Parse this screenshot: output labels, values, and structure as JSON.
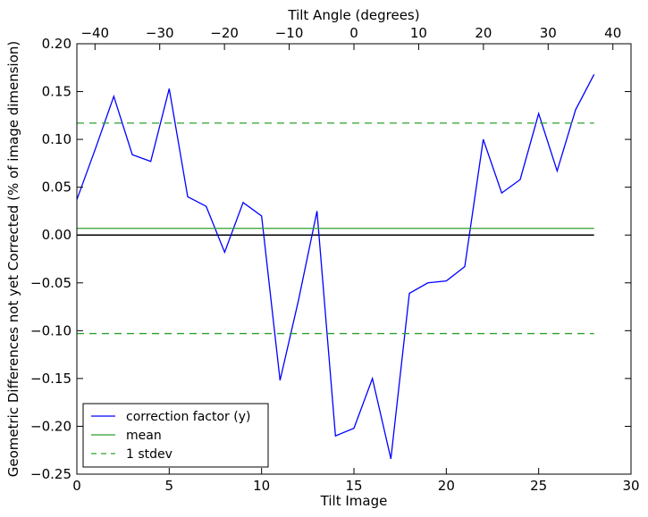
{
  "chart_data": {
    "type": "line",
    "xlabel": "Tilt Image",
    "ylabel": "Geometric Differences not yet Corrected (% of image dimension)",
    "top_xlabel": "Tilt Angle (degrees)",
    "xlim": [
      0,
      30
    ],
    "ylim": [
      -0.25,
      0.2
    ],
    "top_xlim": [
      -42.8,
      42.8
    ],
    "x_ticks": [
      0,
      5,
      10,
      15,
      20,
      25,
      30
    ],
    "x_tick_labels": [
      "0",
      "5",
      "10",
      "15",
      "20",
      "25",
      "30"
    ],
    "y_ticks": [
      -0.25,
      -0.2,
      -0.15,
      -0.1,
      -0.05,
      0.0,
      0.05,
      0.1,
      0.15,
      0.2
    ],
    "y_tick_labels": [
      "−0.25",
      "−0.20",
      "−0.15",
      "−0.10",
      "−0.05",
      "0.00",
      "0.05",
      "0.10",
      "0.15",
      "0.20"
    ],
    "top_ticks": [
      -40,
      -30,
      -20,
      -10,
      0,
      10,
      20,
      30,
      40
    ],
    "top_tick_labels": [
      "−40",
      "−30",
      "−20",
      "−10",
      "0",
      "10",
      "20",
      "30",
      "40"
    ],
    "grid": false,
    "legend_placement": "lower-left",
    "zero_line": {
      "y": 0.0,
      "x_range": [
        0,
        28
      ],
      "color": "#000000"
    },
    "series": [
      {
        "name": "correction factor (y)",
        "style": "solid",
        "color": "#0000ff",
        "x": [
          0,
          1,
          2,
          3,
          4,
          5,
          6,
          7,
          8,
          9,
          10,
          11,
          12,
          13,
          14,
          15,
          16,
          17,
          18,
          19,
          20,
          21,
          22,
          23,
          24,
          25,
          26,
          27,
          28
        ],
        "y": [
          0.037,
          0.09,
          0.145,
          0.084,
          0.077,
          0.153,
          0.04,
          0.03,
          -0.018,
          0.034,
          0.02,
          -0.152,
          -0.068,
          0.025,
          -0.21,
          -0.202,
          -0.15,
          -0.234,
          -0.061,
          -0.05,
          -0.048,
          -0.033,
          0.1,
          0.044,
          0.058,
          0.127,
          0.067,
          0.131,
          0.168
        ]
      },
      {
        "name": "mean",
        "style": "solid",
        "color": "#2ca02c",
        "x": [
          0,
          28
        ],
        "y": [
          0.007,
          0.007
        ]
      },
      {
        "name": "1 stdev",
        "style": "dashed",
        "color": "#2ca02c",
        "x": [
          0,
          28
        ],
        "y": [
          0.117,
          0.117
        ],
        "extra_lines": [
          {
            "x": [
              0,
              28
            ],
            "y": [
              -0.103,
              -0.103
            ]
          }
        ]
      }
    ]
  }
}
